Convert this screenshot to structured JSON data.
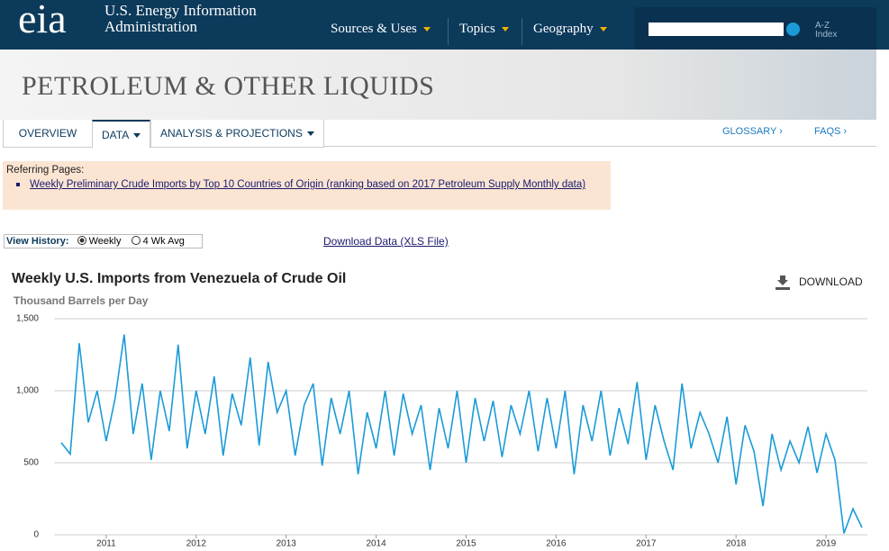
{
  "header": {
    "logo": "eia",
    "org_line1": "U.S. Energy Information",
    "org_line2": "Administration",
    "nav": [
      "Sources & Uses",
      "Topics",
      "Geography"
    ],
    "az": "A-Z",
    "index": "Index"
  },
  "banner": {
    "title": "PETROLEUM & OTHER LIQUIDS"
  },
  "tabs": [
    "OVERVIEW",
    "DATA",
    "ANALYSIS & PROJECTIONS"
  ],
  "links": [
    "GLOSSARY ›",
    "FAQS ›"
  ],
  "referring": {
    "label": "Referring Pages:",
    "link": "Weekly Preliminary Crude Imports by Top 10 Countries of Origin (ranking based on 2017 Petroleum Supply Monthly data)"
  },
  "view_history": {
    "label": "View History:",
    "options": [
      "Weekly",
      "4 Wk Avg"
    ],
    "download_data": "Download Data (XLS File)"
  },
  "chart_data": {
    "type": "line",
    "title": "Weekly U.S. Imports from Venezuela of Crude Oil",
    "subtitle": "Thousand Barrels per Day",
    "download": "DOWNLOAD",
    "x": [
      2010.5,
      2010.6,
      2010.7,
      2010.8,
      2010.9,
      2011.0,
      2011.1,
      2011.2,
      2011.3,
      2011.4,
      2011.5,
      2011.6,
      2011.7,
      2011.8,
      2011.9,
      2012.0,
      2012.1,
      2012.2,
      2012.3,
      2012.4,
      2012.5,
      2012.6,
      2012.7,
      2012.8,
      2012.9,
      2013.0,
      2013.1,
      2013.2,
      2013.3,
      2013.4,
      2013.5,
      2013.6,
      2013.7,
      2013.8,
      2013.9,
      2014.0,
      2014.1,
      2014.2,
      2014.3,
      2014.4,
      2014.5,
      2014.6,
      2014.7,
      2014.8,
      2014.9,
      2015.0,
      2015.1,
      2015.2,
      2015.3,
      2015.4,
      2015.5,
      2015.6,
      2015.7,
      2015.8,
      2015.9,
      2016.0,
      2016.1,
      2016.2,
      2016.3,
      2016.4,
      2016.5,
      2016.6,
      2016.7,
      2016.8,
      2016.9,
      2017.0,
      2017.1,
      2017.2,
      2017.3,
      2017.4,
      2017.5,
      2017.6,
      2017.7,
      2017.8,
      2017.9,
      2018.0,
      2018.1,
      2018.2,
      2018.3,
      2018.4,
      2018.5,
      2018.6,
      2018.7,
      2018.8,
      2018.9,
      2019.0,
      2019.1,
      2019.2,
      2019.3,
      2019.4
    ],
    "values": [
      640,
      560,
      1330,
      780,
      1000,
      650,
      950,
      1390,
      700,
      1050,
      520,
      1000,
      720,
      1320,
      600,
      1000,
      700,
      1100,
      550,
      980,
      760,
      1230,
      620,
      1200,
      850,
      1000,
      550,
      900,
      1050,
      480,
      950,
      700,
      1000,
      420,
      850,
      600,
      1000,
      550,
      980,
      700,
      900,
      450,
      880,
      600,
      1000,
      500,
      950,
      650,
      930,
      540,
      900,
      700,
      1000,
      580,
      950,
      600,
      1000,
      420,
      900,
      650,
      1000,
      550,
      880,
      630,
      1060,
      520,
      900,
      650,
      450,
      1050,
      600,
      850,
      700,
      500,
      820,
      350,
      760,
      580,
      200,
      700,
      450,
      650,
      500,
      750,
      430,
      700,
      520,
      10,
      180,
      50
    ],
    "color": "#1a9bd7",
    "xlim": [
      2010.42,
      2019.46
    ],
    "xticks": [
      2011,
      2012,
      2013,
      2014,
      2015,
      2016,
      2017,
      2018,
      2019
    ],
    "ylim": [
      0,
      1500
    ],
    "yticks": [
      0,
      500,
      {
        "value": 1000,
        "label": "1,000"
      },
      {
        "value": 1500,
        "label": "1,500"
      }
    ],
    "grid": true
  }
}
